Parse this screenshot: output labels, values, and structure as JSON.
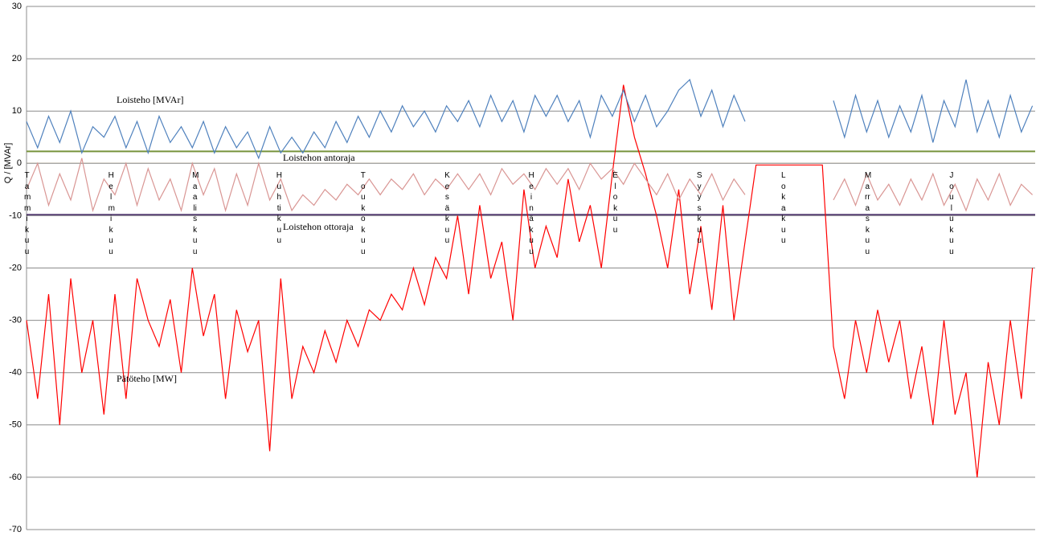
{
  "chart_data": {
    "type": "line",
    "y_label": "Q / [MVAr]",
    "ylim": [
      -70,
      30
    ],
    "yticks": [
      30,
      20,
      10,
      0,
      -10,
      -20,
      -30,
      -40,
      -50,
      -60,
      -70
    ],
    "grid": true,
    "xlim": [
      0,
      365
    ],
    "months": [
      "Tammikuu",
      "Helmikuu",
      "Maaliskuu",
      "Huhtikuu",
      "Toukokuu",
      "Kesäkuu",
      "Heinäkuu",
      "Elokuu",
      "Syyskuu",
      "Lokakuu",
      "Marraskuu",
      "Joulukuu"
    ],
    "x": [
      0,
      4,
      8,
      12,
      16,
      20,
      24,
      28,
      32,
      36,
      40,
      44,
      48,
      52,
      56,
      60,
      64,
      68,
      72,
      76,
      80,
      84,
      88,
      92,
      96,
      100,
      104,
      108,
      112,
      116,
      120,
      124,
      128,
      132,
      136,
      140,
      144,
      148,
      152,
      156,
      160,
      164,
      168,
      172,
      176,
      180,
      184,
      188,
      192,
      196,
      200,
      204,
      208,
      212,
      216,
      220,
      224,
      228,
      232,
      236,
      240,
      244,
      248,
      252,
      256,
      260,
      264,
      268,
      272,
      276,
      280,
      284,
      288,
      292,
      296,
      300,
      304,
      308,
      312,
      316,
      320,
      324,
      328,
      332,
      336,
      340,
      344,
      348,
      352,
      356,
      360,
      364
    ],
    "series": [
      {
        "name": "Pätöteho [MW]",
        "color": "#ff0000",
        "values": [
          -30,
          -45,
          -25,
          -50,
          -22,
          -40,
          -30,
          -48,
          -25,
          -45,
          -22,
          -30,
          -35,
          -26,
          -40,
          -20,
          -33,
          -25,
          -45,
          -28,
          -36,
          -30,
          -55,
          -22,
          -45,
          -35,
          -40,
          -32,
          -38,
          -30,
          -35,
          -28,
          -30,
          -25,
          -28,
          -20,
          -27,
          -18,
          -22,
          -10,
          -25,
          -8,
          -22,
          -15,
          -30,
          -5,
          -20,
          -12,
          -18,
          -3,
          -15,
          -8,
          -20,
          -2,
          15,
          5,
          -2,
          -10,
          -20,
          -5,
          -25,
          -12,
          -28,
          -8,
          -30,
          -15,
          -0.3,
          -0.3,
          -0.3,
          -0.3,
          -0.3,
          -0.3,
          -0.3,
          -35,
          -45,
          -30,
          -40,
          -28,
          -38,
          -30,
          -45,
          -35,
          -50,
          -30,
          -48,
          -40,
          -60,
          -38,
          -50,
          -30,
          -45,
          -20
        ]
      },
      {
        "color": "#d99694",
        "values": [
          -5,
          0,
          -8,
          -2,
          -7,
          1,
          -9,
          -3,
          -6,
          0,
          -8,
          -1,
          -7,
          -3,
          -9,
          0,
          -6,
          -1,
          -9,
          -2,
          -8,
          0,
          -7,
          -3,
          -9,
          -6,
          -8,
          -5,
          -7,
          -4,
          -6,
          -3,
          -6,
          -3,
          -5,
          -2,
          -6,
          -3,
          -5,
          -2,
          -5,
          -2,
          -6,
          -1,
          -4,
          -2,
          -5,
          -1,
          -4,
          -1,
          -5,
          0,
          -3,
          -1,
          -4,
          0,
          -3,
          -6,
          -2,
          -7,
          -3,
          -6,
          -2,
          -7,
          -3,
          -6,
          null,
          null,
          null,
          null,
          null,
          null,
          null,
          -7,
          -3,
          -8,
          -2,
          -7,
          -4,
          -8,
          -3,
          -7,
          -2,
          -8,
          -4,
          -9,
          -3,
          -7,
          -2,
          -8,
          -4,
          -6
        ]
      },
      {
        "name": "Loisteho [MVAr]",
        "color": "#4f81bd",
        "values": [
          8,
          3,
          9,
          4,
          10,
          2,
          7,
          5,
          9,
          3,
          8,
          2,
          9,
          4,
          7,
          3,
          8,
          2,
          7,
          3,
          6,
          1,
          7,
          2,
          5,
          2,
          6,
          3,
          8,
          4,
          9,
          5,
          10,
          6,
          11,
          7,
          10,
          6,
          11,
          8,
          12,
          7,
          13,
          8,
          12,
          6,
          13,
          9,
          13,
          8,
          12,
          5,
          13,
          9,
          14,
          8,
          13,
          7,
          10,
          14,
          16,
          9,
          14,
          7,
          13,
          8,
          null,
          null,
          null,
          null,
          null,
          null,
          null,
          12,
          5,
          13,
          6,
          12,
          5,
          11,
          6,
          13,
          4,
          12,
          7,
          16,
          6,
          12,
          5,
          13,
          6,
          11
        ]
      }
    ],
    "reference_lines": [
      {
        "label": "Loistehon antoraja",
        "value": 2.3,
        "color": "#77933c"
      },
      {
        "label": "Loistehon ottoraja",
        "value": -9.8,
        "color": "#604a7b"
      }
    ]
  }
}
